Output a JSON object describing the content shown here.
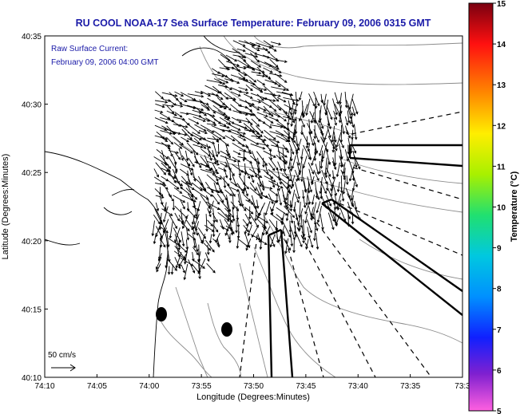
{
  "title": "RU COOL  NOAA-17  Sea Surface Temperature:  February 09, 2006 0315 GMT",
  "legend_box": {
    "line1": "Raw Surface Current:",
    "line2": "February 09, 2006 04:00 GMT"
  },
  "scale_label": "50 cm/s",
  "axes": {
    "xlabel": "Longitude (Degrees:Minutes)",
    "ylabel": "Latitude (Degrees:Minutes)",
    "x_ticks": [
      "74:10",
      "74:05",
      "74:00",
      "73:55",
      "73:50",
      "73:45",
      "73:40",
      "73:35",
      "73:3"
    ],
    "y_ticks": [
      "40:35",
      "40:30",
      "40:25",
      "40:20",
      "40:15",
      "40:10"
    ]
  },
  "colorbar": {
    "label": "Temperature (°C)",
    "min": 5,
    "max": 15,
    "ticks": [
      "15",
      "14",
      "13",
      "12",
      "11",
      "10",
      "9",
      "8",
      "7",
      "6",
      "5"
    ]
  },
  "colors": {
    "title": "#1a1aa8",
    "legend_text": "#1a1aa8",
    "frame": "#000000"
  }
}
